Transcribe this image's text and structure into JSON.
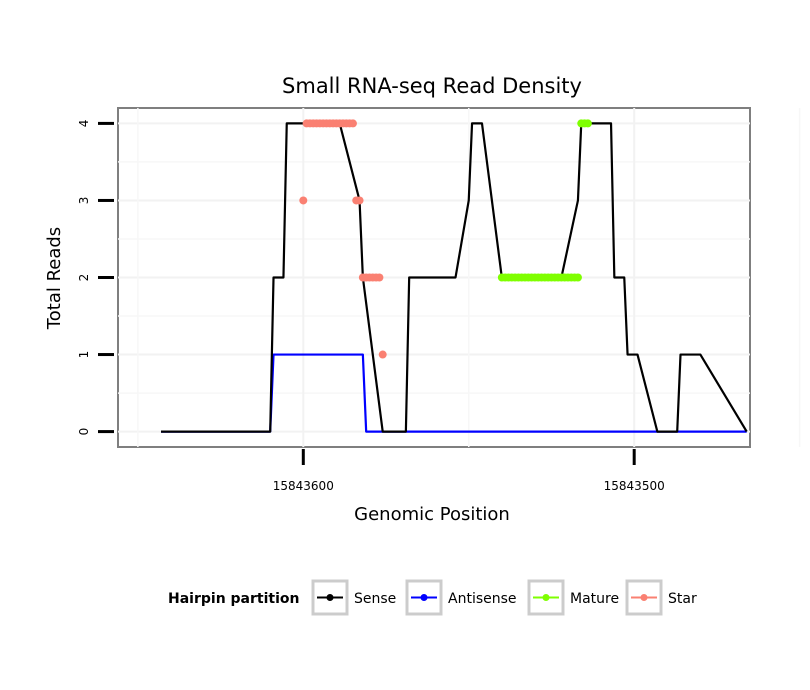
{
  "chart_data": {
    "type": "line",
    "title": "Small RNA-seq Read Density",
    "xlabel": "Genomic Position",
    "ylabel": "Total Reads",
    "xlim": [
      15843656,
      15843465
    ],
    "ylim": [
      -0.2,
      4.2
    ],
    "x_reversed": true,
    "xticks": [
      15843600,
      15843500
    ],
    "xtick_labels": [
      "15843600",
      "15843500"
    ],
    "yticks": [
      0,
      1,
      2,
      3,
      4
    ],
    "ytick_labels": [
      "0",
      "1",
      "2",
      "3",
      "4"
    ],
    "grid": true,
    "legend": {
      "title": "Hairpin partition",
      "position": "bottom",
      "entries": [
        {
          "label": "Sense",
          "color": "#000000"
        },
        {
          "label": "Antisense",
          "color": "#0000FF"
        },
        {
          "label": "Mature",
          "color": "#7FFF00"
        },
        {
          "label": "Star",
          "color": "#FA8072"
        }
      ]
    },
    "series": [
      {
        "name": "Sense",
        "color": "#000000",
        "x": [
          15843643,
          15843610,
          15843609,
          15843606,
          15843605,
          15843600,
          15843599,
          15843590,
          15843589,
          15843583,
          15843582,
          15843576,
          15843569,
          15843568,
          15843559,
          15843554,
          15843550,
          15843549,
          15843547,
          15843546,
          15843540,
          15843532,
          15843531,
          15843528,
          15843527,
          15843523,
          15843522,
          15843517,
          15843516,
          15843507,
          15843506,
          15843503,
          15843502,
          15843499,
          15843493,
          15843487,
          15843486,
          15843480,
          15843466
        ],
        "values": [
          0,
          0,
          2,
          2,
          4,
          4,
          4,
          4,
          4,
          3,
          2,
          0,
          0,
          2,
          2,
          2,
          3,
          4,
          4,
          4,
          2,
          2,
          2,
          2,
          2,
          2,
          2,
          3,
          4,
          4,
          2,
          2,
          1,
          1,
          0,
          0,
          1,
          1,
          0
        ]
      },
      {
        "name": "Antisense",
        "color": "#0000FF",
        "x": [
          15843643,
          15843610,
          15843609,
          15843582,
          15843581,
          15843555,
          15843554,
          15843466
        ],
        "values": [
          0,
          0,
          1,
          1,
          0,
          0,
          0,
          0
        ],
        "x_full": [
          15843643,
          15843610,
          15843609,
          15843582,
          15843581,
          15843466
        ],
        "values_full": [
          0,
          0,
          1,
          1,
          0,
          0
        ]
      },
      {
        "name": "Mature",
        "color": "#7FFF00",
        "points_x": [
          15843540,
          15843539,
          15843538,
          15843537,
          15843536,
          15843535,
          15843534,
          15843533,
          15843532,
          15843531,
          15843530,
          15843529,
          15843528,
          15843527,
          15843526,
          15843525,
          15843524,
          15843523,
          15843522,
          15843521,
          15843520,
          15843519,
          15843518,
          15843517,
          15843516,
          15843515,
          15843514
        ],
        "points_y": [
          2,
          2,
          2,
          2,
          2,
          2,
          2,
          2,
          2,
          2,
          2,
          2,
          2,
          2,
          2,
          2,
          2,
          2,
          2,
          2,
          2,
          2,
          2,
          2,
          4,
          4,
          4
        ]
      },
      {
        "name": "Star",
        "color": "#FA8072",
        "points_x": [
          15843600,
          15843599,
          15843598,
          15843597,
          15843596,
          15843595,
          15843594,
          15843593,
          15843592,
          15843591,
          15843590,
          15843589,
          15843588,
          15843587,
          15843586,
          15843585,
          15843584,
          15843583,
          15843582,
          15843581,
          15843580,
          15843579,
          15843578,
          15843577,
          15843576
        ],
        "points_y": [
          3,
          4,
          4,
          4,
          4,
          4,
          4,
          4,
          4,
          4,
          4,
          4,
          4,
          4,
          4,
          4,
          3,
          3,
          2,
          2,
          2,
          2,
          2,
          2,
          1
        ]
      }
    ]
  }
}
